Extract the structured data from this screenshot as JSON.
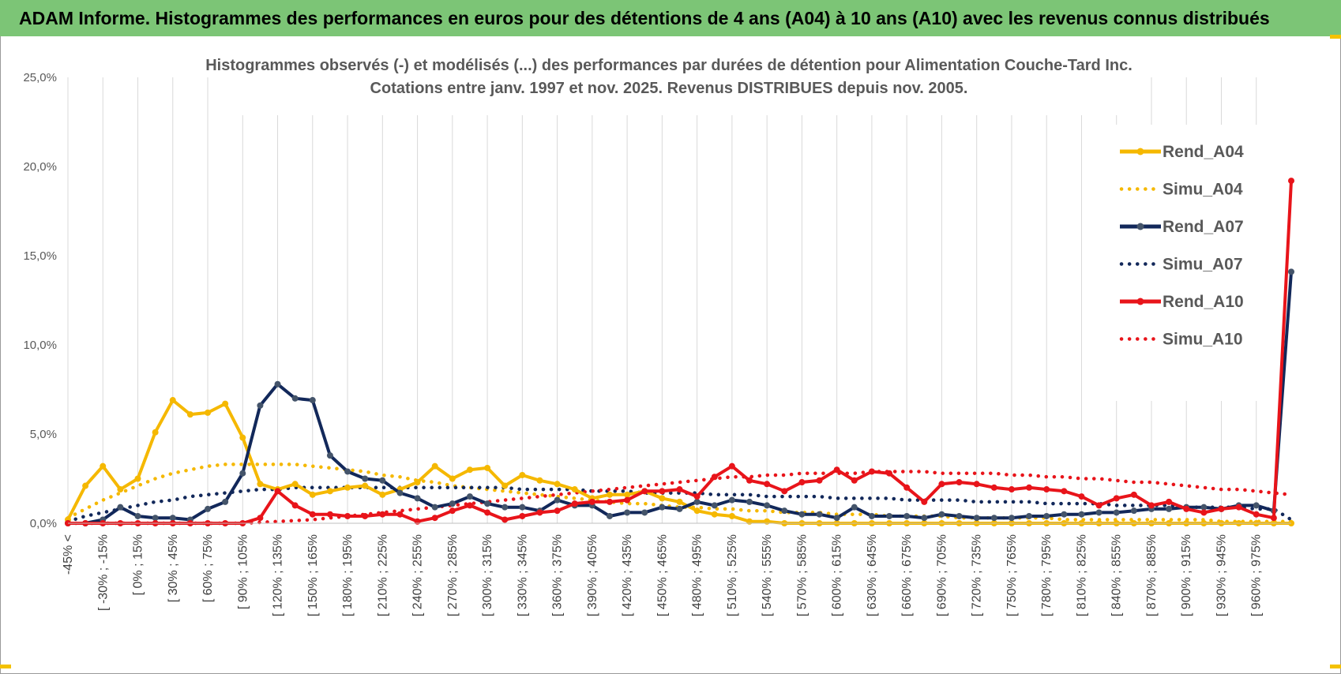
{
  "header": {
    "banner_title": "ADAM Informe. Histogrammes des performances en euros pour des détentions de 4 ans (A04) à 10 ans (A10) avec les revenus connus distribués"
  },
  "colors": {
    "banner_bg": "#7cc576",
    "A04": "#f5b800",
    "A07": "#12285a",
    "A10": "#e8141a",
    "grid": "#d9d9d9"
  },
  "chart_data": {
    "type": "line",
    "title": "Histogrammes observés (-) et modélisés (...) des performances par durées de détention pour Alimentation Couche-Tard Inc.",
    "subtitle": "Cotations entre janv. 1997 et nov. 2025. Revenus DISTRIBUES depuis nov. 2005.",
    "xlabel": "",
    "ylabel": "",
    "ylim": [
      0,
      25
    ],
    "yticks": [
      "0,0%",
      "5,0%",
      "10,0%",
      "15,0%",
      "20,0%",
      "25,0%"
    ],
    "grid": "vertical",
    "legend_position": "right",
    "x_tick_labels": [
      "-45% <",
      "[ -30% ; -15%",
      "[ 0% ; 15%",
      "[ 30% ; 45%",
      "[ 60% ; 75%",
      "[ 90% ; 105%",
      "[ 120% ; 135%",
      "[ 150% ; 165%",
      "[ 180% ; 195%",
      "[ 210% ; 225%",
      "[ 240% ; 255%",
      "[ 270% ; 285%",
      "[ 300% ; 315%",
      "[ 330% ; 345%",
      "[ 360% ; 375%",
      "[ 390% ; 405%",
      "[ 420% ; 435%",
      "[ 450% ; 465%",
      "[ 480% ; 495%",
      "[ 510% ; 525%",
      "[ 540% ; 555%",
      "[ 570% ; 585%",
      "[ 600% ; 615%",
      "[ 630% ; 645%",
      "[ 660% ; 675%",
      "[ 690% ; 705%",
      "[ 720% ; 735%",
      "[ 750% ; 765%",
      "[ 780% ; 795%",
      "[ 810% ; 825%",
      "[ 840% ; 855%",
      "[ 870% ; 885%",
      "[ 900% ; 915%",
      "[ 930% ; 945%",
      "[ 960% ; 975%"
    ],
    "x_count": 71,
    "series": [
      {
        "name": "Rend_A04",
        "style": "solid",
        "color": "#f5b800",
        "values": [
          0.2,
          2.1,
          3.2,
          1.9,
          2.5,
          5.1,
          6.9,
          6.1,
          6.2,
          6.7,
          4.8,
          2.2,
          1.9,
          2.2,
          1.6,
          1.8,
          2.0,
          2.1,
          1.6,
          1.9,
          2.3,
          3.2,
          2.5,
          3.0,
          3.1,
          2.1,
          2.7,
          2.4,
          2.2,
          1.9,
          1.4,
          1.6,
          1.6,
          1.8,
          1.4,
          1.2,
          0.7,
          0.5,
          0.4,
          0.1,
          0.1,
          0.0,
          0.0,
          0.0,
          0.0,
          0.0,
          0.0,
          0.0,
          0.0,
          0.0,
          0.0,
          0.0,
          0.0,
          0.0,
          0.0,
          0.0,
          0.0,
          0.0,
          0.0,
          0.0,
          0.0,
          0.0,
          0.0,
          0.0,
          0.0,
          0.0,
          0.0,
          0.0,
          0.0,
          0.0,
          0.0
        ]
      },
      {
        "name": "Simu_A04",
        "style": "dotted",
        "color": "#f5b800",
        "values": [
          0.3,
          0.8,
          1.3,
          1.7,
          2.1,
          2.5,
          2.8,
          3.0,
          3.2,
          3.3,
          3.3,
          3.3,
          3.3,
          3.3,
          3.2,
          3.1,
          3.0,
          2.9,
          2.7,
          2.6,
          2.4,
          2.3,
          2.1,
          2.0,
          1.9,
          1.8,
          1.7,
          1.6,
          1.5,
          1.4,
          1.3,
          1.2,
          1.1,
          1.1,
          1.0,
          0.9,
          0.9,
          0.8,
          0.8,
          0.7,
          0.7,
          0.6,
          0.6,
          0.6,
          0.5,
          0.5,
          0.5,
          0.4,
          0.4,
          0.4,
          0.4,
          0.3,
          0.3,
          0.3,
          0.3,
          0.3,
          0.3,
          0.2,
          0.2,
          0.2,
          0.2,
          0.2,
          0.2,
          0.2,
          0.2,
          0.2,
          0.1,
          0.1,
          0.1,
          0.1,
          0.1
        ]
      },
      {
        "name": "Rend_A07",
        "style": "solid",
        "color": "#12285a",
        "values": [
          0.0,
          0.0,
          0.2,
          0.9,
          0.4,
          0.3,
          0.3,
          0.2,
          0.8,
          1.2,
          2.8,
          6.6,
          7.8,
          7.0,
          6.9,
          3.8,
          2.9,
          2.5,
          2.4,
          1.7,
          1.4,
          0.9,
          1.1,
          1.5,
          1.1,
          0.9,
          0.9,
          0.7,
          1.3,
          1.0,
          1.0,
          0.4,
          0.6,
          0.6,
          0.9,
          0.8,
          1.2,
          1.0,
          1.3,
          1.2,
          1.0,
          0.7,
          0.5,
          0.5,
          0.3,
          0.9,
          0.4,
          0.4,
          0.4,
          0.3,
          0.5,
          0.4,
          0.3,
          0.3,
          0.3,
          0.4,
          0.4,
          0.5,
          0.5,
          0.6,
          0.6,
          0.7,
          0.8,
          0.8,
          0.9,
          0.9,
          0.8,
          1.0,
          1.0,
          0.7,
          14.1
        ]
      },
      {
        "name": "Simu_A07",
        "style": "dotted",
        "color": "#12285a",
        "values": [
          0.1,
          0.4,
          0.6,
          0.8,
          1.0,
          1.2,
          1.3,
          1.5,
          1.6,
          1.7,
          1.8,
          1.9,
          1.9,
          2.0,
          2.0,
          2.0,
          2.0,
          2.0,
          2.0,
          2.0,
          2.0,
          2.0,
          2.0,
          2.0,
          2.0,
          2.0,
          1.9,
          1.9,
          1.9,
          1.9,
          1.8,
          1.8,
          1.8,
          1.7,
          1.7,
          1.7,
          1.7,
          1.6,
          1.6,
          1.6,
          1.5,
          1.5,
          1.5,
          1.5,
          1.4,
          1.4,
          1.4,
          1.4,
          1.3,
          1.3,
          1.3,
          1.3,
          1.2,
          1.2,
          1.2,
          1.2,
          1.1,
          1.1,
          1.1,
          1.1,
          1.0,
          1.0,
          1.0,
          1.0,
          0.9,
          0.9,
          0.9,
          0.9,
          0.8,
          0.8,
          0.2
        ]
      },
      {
        "name": "Rend_A10",
        "style": "solid",
        "color": "#e8141a",
        "values": [
          0.0,
          0.0,
          0.0,
          0.0,
          0.0,
          0.0,
          0.0,
          0.0,
          0.0,
          0.0,
          0.0,
          0.3,
          1.8,
          1.0,
          0.5,
          0.5,
          0.4,
          0.4,
          0.5,
          0.5,
          0.1,
          0.3,
          0.7,
          1.0,
          0.6,
          0.2,
          0.4,
          0.6,
          0.7,
          1.1,
          1.2,
          1.2,
          1.3,
          1.8,
          1.8,
          1.9,
          1.5,
          2.6,
          3.2,
          2.4,
          2.2,
          1.8,
          2.3,
          2.4,
          3.0,
          2.4,
          2.9,
          2.8,
          2.0,
          1.2,
          2.2,
          2.3,
          2.2,
          2.0,
          1.9,
          2.0,
          1.9,
          1.8,
          1.5,
          1.0,
          1.4,
          1.6,
          1.0,
          1.2,
          0.8,
          0.6,
          0.8,
          0.9,
          0.5,
          0.3,
          19.2
        ]
      },
      {
        "name": "Simu_A10",
        "style": "dotted",
        "color": "#e8141a",
        "values": [
          0.0,
          0.0,
          0.0,
          0.0,
          0.0,
          0.0,
          0.0,
          0.0,
          0.0,
          0.0,
          0.0,
          0.05,
          0.1,
          0.15,
          0.2,
          0.3,
          0.4,
          0.5,
          0.6,
          0.7,
          0.8,
          0.9,
          1.0,
          1.1,
          1.2,
          1.3,
          1.4,
          1.5,
          1.6,
          1.7,
          1.8,
          1.9,
          2.0,
          2.1,
          2.2,
          2.3,
          2.4,
          2.5,
          2.6,
          2.6,
          2.7,
          2.7,
          2.8,
          2.8,
          2.8,
          2.8,
          2.9,
          2.9,
          2.9,
          2.9,
          2.8,
          2.8,
          2.8,
          2.8,
          2.7,
          2.7,
          2.6,
          2.6,
          2.5,
          2.5,
          2.4,
          2.3,
          2.3,
          2.2,
          2.1,
          2.0,
          1.9,
          1.9,
          1.8,
          1.7,
          1.6
        ]
      }
    ]
  }
}
